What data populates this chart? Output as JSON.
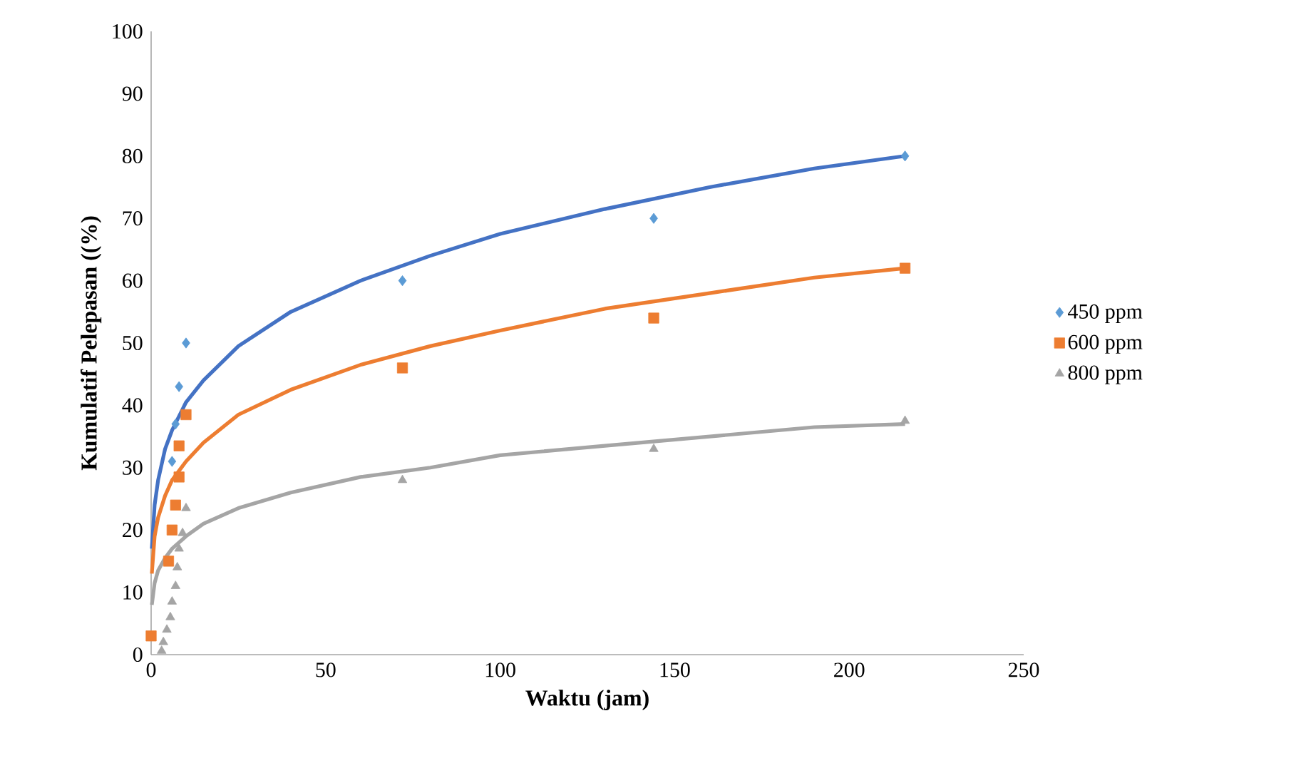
{
  "chart_data": {
    "type": "scatter",
    "xlabel": "Waktu (jam)",
    "ylabel": "Kumulatif Pelepasan ((%)",
    "xlim": [
      0,
      250
    ],
    "ylim": [
      0,
      100
    ],
    "xticks": [
      0,
      50,
      100,
      150,
      200,
      250
    ],
    "yticks": [
      0,
      10,
      20,
      30,
      40,
      50,
      60,
      70,
      80,
      90,
      100
    ],
    "legend": "right",
    "grid": false,
    "series": [
      {
        "name": "450 ppm",
        "color": "#5b9bd5",
        "marker": "diamond",
        "x": [
          6,
          7,
          8,
          10,
          72,
          144,
          216
        ],
        "values": [
          31,
          37,
          43,
          50,
          60,
          70,
          80
        ]
      },
      {
        "name": "600 ppm",
        "color": "#ed7d31",
        "marker": "square",
        "x": [
          0,
          5,
          6,
          7,
          8,
          8,
          10,
          72,
          144,
          216
        ],
        "values": [
          3,
          15,
          20,
          24,
          28.5,
          33.5,
          38.5,
          46,
          54,
          62
        ]
      },
      {
        "name": "800 ppm",
        "color": "#a5a5a5",
        "marker": "triangle",
        "x": [
          3,
          3.5,
          4.5,
          5.5,
          6,
          7,
          7.5,
          8,
          9,
          10,
          72,
          144,
          216
        ],
        "values": [
          0.6,
          2,
          4,
          6,
          8.5,
          11,
          14,
          17,
          19.5,
          23.5,
          28,
          33,
          37.5
        ]
      },
      {
        "type": "line",
        "color": "#4472c4",
        "line_style": "solid",
        "marker": "none",
        "x": [
          0.2,
          1,
          2,
          4,
          6,
          10,
          15,
          25,
          40,
          60,
          80,
          100,
          130,
          160,
          190,
          216
        ],
        "values": [
          17,
          24,
          28,
          33,
          36,
          40.5,
          44,
          49.5,
          55,
          60,
          64,
          67.5,
          71.5,
          75,
          78,
          80
        ]
      },
      {
        "type": "line",
        "color": "#ed7d31",
        "line_style": "solid",
        "marker": "none",
        "x": [
          0.2,
          1,
          2,
          4,
          6,
          10,
          15,
          25,
          40,
          60,
          80,
          100,
          130,
          160,
          190,
          216
        ],
        "values": [
          13,
          19,
          22,
          25.5,
          28,
          31,
          34,
          38.5,
          42.5,
          46.5,
          49.5,
          52,
          55.5,
          58,
          60.5,
          62
        ]
      },
      {
        "type": "line",
        "color": "#a5a5a5",
        "line_style": "solid",
        "marker": "none",
        "x": [
          0.2,
          1,
          2,
          4,
          6,
          10,
          15,
          25,
          40,
          60,
          80,
          100,
          130,
          160,
          190,
          216
        ],
        "values": [
          8,
          11.5,
          13.5,
          15.5,
          17,
          19,
          21,
          23.5,
          26,
          28.5,
          30,
          32,
          33.5,
          35,
          36.5,
          37
        ]
      }
    ]
  }
}
